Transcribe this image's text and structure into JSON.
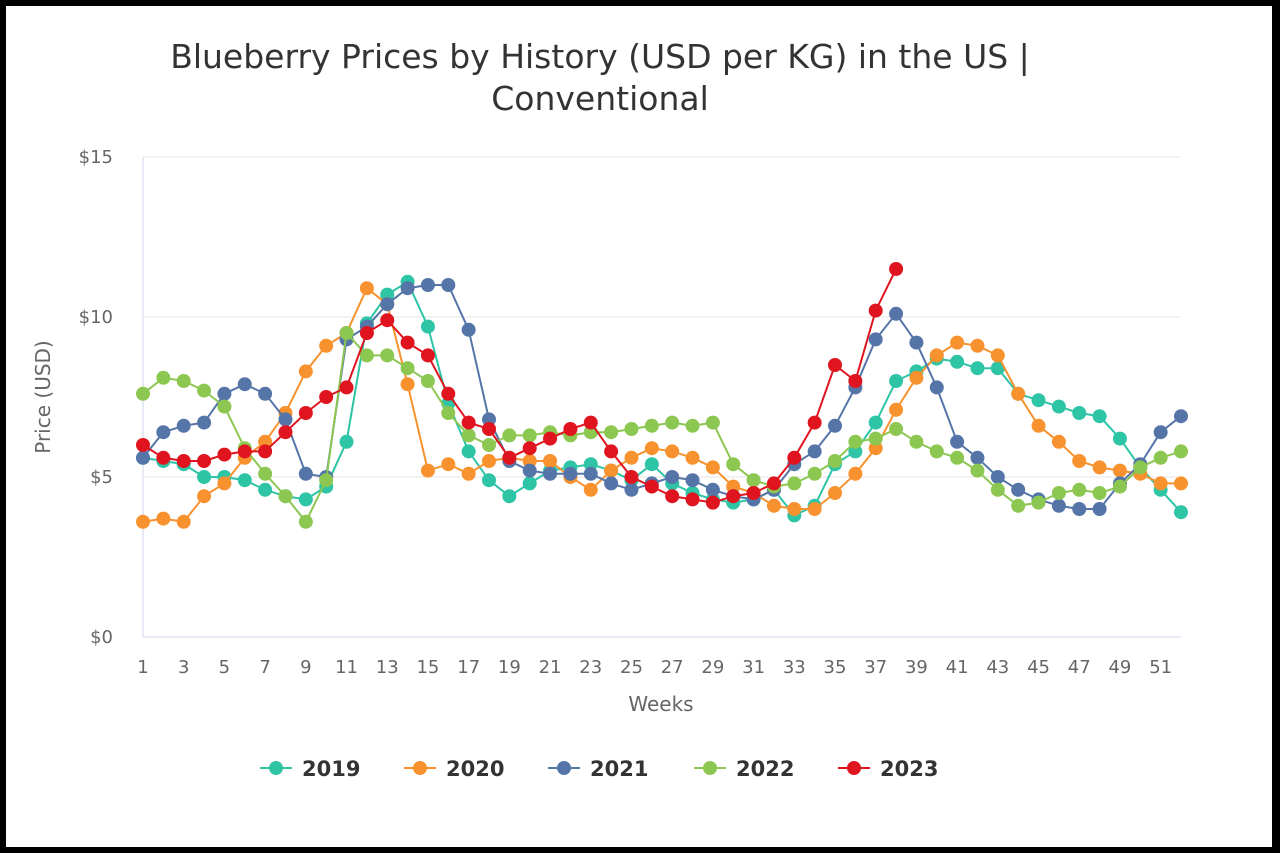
{
  "chart_data": {
    "type": "line",
    "title_line1": "Blueberry Prices by History (USD per KG) in the US |",
    "title_line2": "Conventional",
    "xlabel": "Weeks",
    "ylabel": "Price (USD)",
    "ylim": [
      0,
      15
    ],
    "xlim": [
      1,
      52
    ],
    "yticks": [
      {
        "value": 0,
        "label": "$0"
      },
      {
        "value": 5,
        "label": "$5"
      },
      {
        "value": 10,
        "label": "$10"
      },
      {
        "value": 15,
        "label": "$15"
      }
    ],
    "xtick_labels": [
      "1",
      "3",
      "5",
      "7",
      "9",
      "11",
      "13",
      "15",
      "17",
      "19",
      "21",
      "23",
      "25",
      "27",
      "29",
      "31",
      "33",
      "35",
      "37",
      "39",
      "41",
      "43",
      "45",
      "47",
      "49",
      "51"
    ],
    "grid": "horizontal",
    "legend_position": "bottom",
    "series": [
      {
        "name": "2019",
        "color": "#2ec4a6",
        "values": [
          5.6,
          5.5,
          5.4,
          5.0,
          5.0,
          4.9,
          4.6,
          4.4,
          4.3,
          4.7,
          6.1,
          9.8,
          10.7,
          11.1,
          9.7,
          7.3,
          5.8,
          4.9,
          4.4,
          4.8,
          5.2,
          5.3,
          5.4,
          5.2,
          4.9,
          5.4,
          4.8,
          4.5,
          4.3,
          4.2,
          4.3,
          4.6,
          3.8,
          4.1,
          5.4,
          5.8,
          6.7,
          8.0,
          8.3,
          8.7,
          8.6,
          8.4,
          8.4,
          7.6,
          7.4,
          7.2,
          7.0,
          6.9,
          6.2,
          5.3,
          4.6,
          3.9
        ]
      },
      {
        "name": "2020",
        "color": "#f7922e",
        "values": [
          3.6,
          3.7,
          3.6,
          4.4,
          4.8,
          5.6,
          6.1,
          7.0,
          8.3,
          9.1,
          9.5,
          10.9,
          10.4,
          7.9,
          5.2,
          5.4,
          5.1,
          5.5,
          5.6,
          5.5,
          5.5,
          5.0,
          4.6,
          5.2,
          5.6,
          5.9,
          5.8,
          5.6,
          5.3,
          4.7,
          4.5,
          4.1,
          4.0,
          4.0,
          4.5,
          5.1,
          5.9,
          7.1,
          8.1,
          8.8,
          9.2,
          9.1,
          8.8,
          7.6,
          6.6,
          6.1,
          5.5,
          5.3,
          5.2,
          5.1,
          4.8,
          4.8
        ]
      },
      {
        "name": "2021",
        "color": "#5575a8",
        "values": [
          5.6,
          6.4,
          6.6,
          6.7,
          7.6,
          7.9,
          7.6,
          6.8,
          5.1,
          5.0,
          9.3,
          9.7,
          10.4,
          10.9,
          11.0,
          11.0,
          9.6,
          6.8,
          5.5,
          5.2,
          5.1,
          5.1,
          5.1,
          4.8,
          4.6,
          4.8,
          5.0,
          4.9,
          4.6,
          4.4,
          4.3,
          4.6,
          5.4,
          5.8,
          6.6,
          7.8,
          9.3,
          10.1,
          9.2,
          7.8,
          6.1,
          5.6,
          5.0,
          4.6,
          4.3,
          4.1,
          4.0,
          4.0,
          4.8,
          5.4,
          6.4,
          6.9
        ]
      },
      {
        "name": "2022",
        "color": "#8cc751",
        "values": [
          7.6,
          8.1,
          8.0,
          7.7,
          7.2,
          5.9,
          5.1,
          4.4,
          3.6,
          4.9,
          9.5,
          8.8,
          8.8,
          8.4,
          8.0,
          7.0,
          6.3,
          6.0,
          6.3,
          6.3,
          6.4,
          6.3,
          6.4,
          6.4,
          6.5,
          6.6,
          6.7,
          6.6,
          6.7,
          5.4,
          4.9,
          4.7,
          4.8,
          5.1,
          5.5,
          6.1,
          6.2,
          6.5,
          6.1,
          5.8,
          5.6,
          5.2,
          4.6,
          4.1,
          4.2,
          4.5,
          4.6,
          4.5,
          4.7,
          5.3,
          5.6,
          5.8
        ]
      },
      {
        "name": "2023",
        "color": "#e0141f",
        "values": [
          6.0,
          5.6,
          5.5,
          5.5,
          5.7,
          5.8,
          5.8,
          6.4,
          7.0,
          7.5,
          7.8,
          9.5,
          9.9,
          9.2,
          8.8,
          7.6,
          6.7,
          6.5,
          5.6,
          5.9,
          6.2,
          6.5,
          6.7,
          5.8,
          5.0,
          4.7,
          4.4,
          4.3,
          4.2,
          4.4,
          4.5,
          4.8,
          5.6,
          6.7,
          8.5,
          8.0,
          10.2,
          11.5,
          null,
          null,
          null,
          null,
          null,
          null,
          null,
          null,
          null,
          null,
          null,
          null,
          null,
          null
        ]
      }
    ]
  }
}
